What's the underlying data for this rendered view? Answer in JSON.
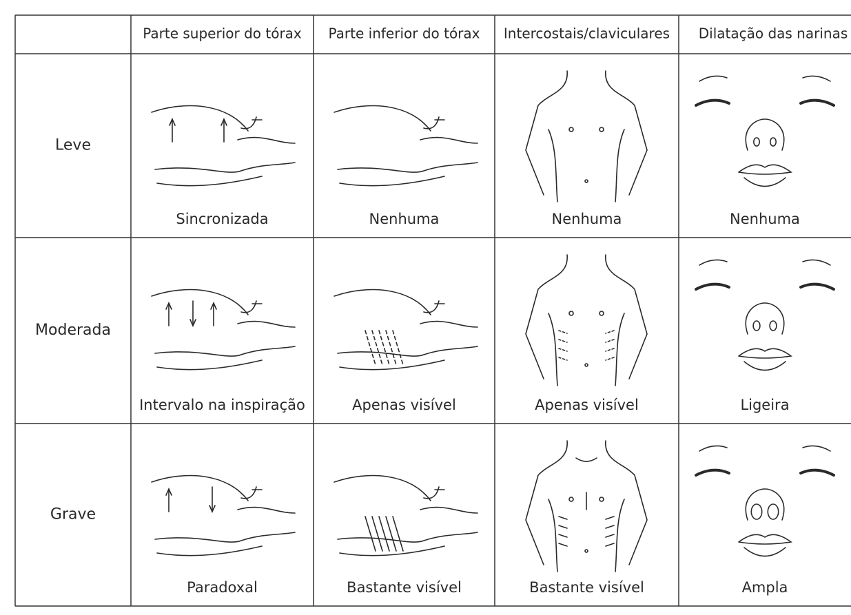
{
  "table": {
    "columns": [
      "Parte superior do tórax",
      "Parte inferior do tórax",
      "Intercostais/claviculares",
      "Dilatação das narinas"
    ],
    "rows": [
      {
        "label": "Leve",
        "cells": [
          "Sincronizada",
          "Nenhuma",
          "Nenhuma",
          "Nenhuma"
        ]
      },
      {
        "label": "Moderada",
        "cells": [
          "Intervalo na inspiração",
          "Apenas visível",
          "Apenas visível",
          "Ligeira"
        ]
      },
      {
        "label": "Grave",
        "cells": [
          "Paradoxal",
          "Bastante visível",
          "Bastante visível",
          "Ampla"
        ]
      }
    ]
  }
}
